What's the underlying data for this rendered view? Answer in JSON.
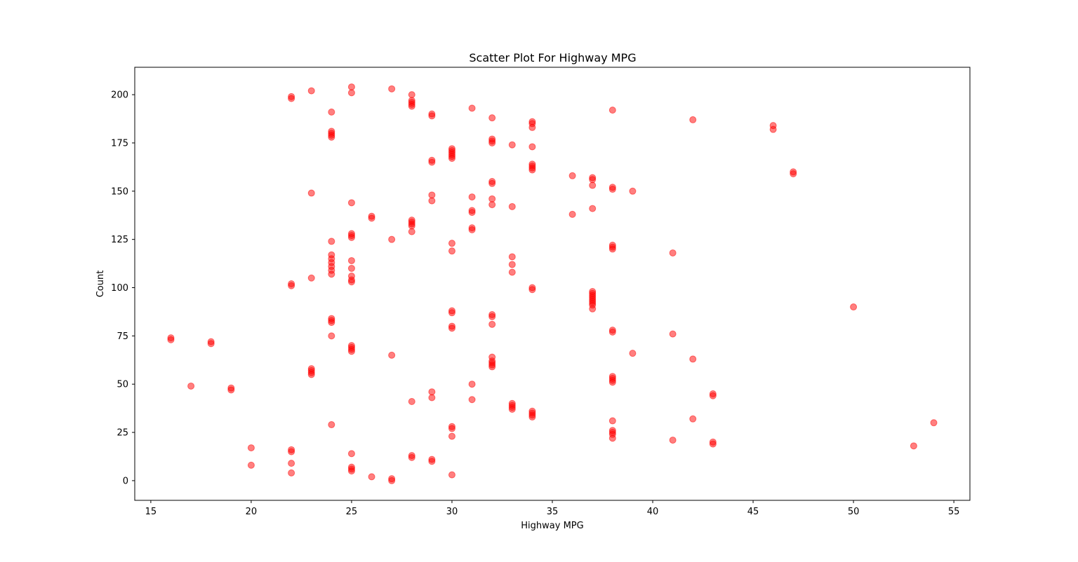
{
  "chart_data": {
    "type": "scatter",
    "title": "Scatter Plot For Highway MPG",
    "xlabel": "Highway MPG",
    "ylabel": "Count",
    "xlim": [
      14.2,
      55.8
    ],
    "ylim": [
      -10.2,
      214.2
    ],
    "xticks": [
      15,
      20,
      25,
      30,
      35,
      40,
      45,
      50,
      55
    ],
    "yticks": [
      0,
      25,
      50,
      75,
      100,
      125,
      150,
      175,
      200
    ],
    "grid": false,
    "legend": "none",
    "marker_color": "#ff0000",
    "marker_opacity": 0.5,
    "points": [
      [
        16,
        74
      ],
      [
        16,
        73
      ],
      [
        17,
        49
      ],
      [
        18,
        72
      ],
      [
        18,
        71
      ],
      [
        19,
        48
      ],
      [
        19,
        47
      ],
      [
        20,
        17
      ],
      [
        20,
        8
      ],
      [
        22,
        199
      ],
      [
        22,
        198
      ],
      [
        22,
        102
      ],
      [
        22,
        101
      ],
      [
        22,
        16
      ],
      [
        22,
        15
      ],
      [
        22,
        9
      ],
      [
        22,
        4
      ],
      [
        23,
        202
      ],
      [
        23,
        149
      ],
      [
        23,
        105
      ],
      [
        23,
        58
      ],
      [
        23,
        57
      ],
      [
        23,
        56
      ],
      [
        23,
        55
      ],
      [
        24,
        191
      ],
      [
        24,
        181
      ],
      [
        24,
        180
      ],
      [
        24,
        179
      ],
      [
        24,
        178
      ],
      [
        24,
        124
      ],
      [
        24,
        117
      ],
      [
        24,
        115
      ],
      [
        24,
        113
      ],
      [
        24,
        111
      ],
      [
        24,
        109
      ],
      [
        24,
        107
      ],
      [
        24,
        84
      ],
      [
        24,
        83
      ],
      [
        24,
        82
      ],
      [
        24,
        75
      ],
      [
        24,
        29
      ],
      [
        25,
        204
      ],
      [
        25,
        201
      ],
      [
        25,
        144
      ],
      [
        25,
        128
      ],
      [
        25,
        127
      ],
      [
        25,
        126
      ],
      [
        25,
        114
      ],
      [
        25,
        110
      ],
      [
        25,
        106
      ],
      [
        25,
        104
      ],
      [
        25,
        103
      ],
      [
        25,
        70
      ],
      [
        25,
        69
      ],
      [
        25,
        68
      ],
      [
        25,
        67
      ],
      [
        25,
        14
      ],
      [
        25,
        7
      ],
      [
        25,
        6
      ],
      [
        25,
        5
      ],
      [
        26,
        137
      ],
      [
        26,
        136
      ],
      [
        26,
        2
      ],
      [
        27,
        203
      ],
      [
        27,
        125
      ],
      [
        27,
        65
      ],
      [
        27,
        1
      ],
      [
        27,
        0
      ],
      [
        28,
        200
      ],
      [
        28,
        197
      ],
      [
        28,
        196
      ],
      [
        28,
        195
      ],
      [
        28,
        194
      ],
      [
        28,
        135
      ],
      [
        28,
        134
      ],
      [
        28,
        133
      ],
      [
        28,
        132
      ],
      [
        28,
        129
      ],
      [
        28,
        41
      ],
      [
        28,
        13
      ],
      [
        28,
        12
      ],
      [
        29,
        190
      ],
      [
        29,
        189
      ],
      [
        29,
        166
      ],
      [
        29,
        165
      ],
      [
        29,
        148
      ],
      [
        29,
        145
      ],
      [
        29,
        46
      ],
      [
        29,
        43
      ],
      [
        29,
        11
      ],
      [
        29,
        10
      ],
      [
        30,
        172
      ],
      [
        30,
        171
      ],
      [
        30,
        170
      ],
      [
        30,
        169
      ],
      [
        30,
        168
      ],
      [
        30,
        167
      ],
      [
        30,
        123
      ],
      [
        30,
        119
      ],
      [
        30,
        88
      ],
      [
        30,
        87
      ],
      [
        30,
        80
      ],
      [
        30,
        79
      ],
      [
        30,
        28
      ],
      [
        30,
        27
      ],
      [
        30,
        23
      ],
      [
        30,
        3
      ],
      [
        31,
        193
      ],
      [
        31,
        147
      ],
      [
        31,
        140
      ],
      [
        31,
        139
      ],
      [
        31,
        131
      ],
      [
        31,
        130
      ],
      [
        31,
        50
      ],
      [
        31,
        42
      ],
      [
        32,
        188
      ],
      [
        32,
        177
      ],
      [
        32,
        176
      ],
      [
        32,
        175
      ],
      [
        32,
        155
      ],
      [
        32,
        154
      ],
      [
        32,
        146
      ],
      [
        32,
        143
      ],
      [
        32,
        86
      ],
      [
        32,
        85
      ],
      [
        32,
        81
      ],
      [
        32,
        64
      ],
      [
        32,
        62
      ],
      [
        32,
        61
      ],
      [
        32,
        60
      ],
      [
        32,
        59
      ],
      [
        33,
        174
      ],
      [
        33,
        142
      ],
      [
        33,
        116
      ],
      [
        33,
        112
      ],
      [
        33,
        108
      ],
      [
        33,
        40
      ],
      [
        33,
        39
      ],
      [
        33,
        38
      ],
      [
        33,
        37
      ],
      [
        34,
        186
      ],
      [
        34,
        185
      ],
      [
        34,
        183
      ],
      [
        34,
        173
      ],
      [
        34,
        164
      ],
      [
        34,
        163
      ],
      [
        34,
        162
      ],
      [
        34,
        161
      ],
      [
        34,
        100
      ],
      [
        34,
        99
      ],
      [
        34,
        36
      ],
      [
        34,
        35
      ],
      [
        34,
        34
      ],
      [
        34,
        33
      ],
      [
        36,
        158
      ],
      [
        36,
        138
      ],
      [
        37,
        157
      ],
      [
        37,
        156
      ],
      [
        37,
        153
      ],
      [
        37,
        141
      ],
      [
        37,
        98
      ],
      [
        37,
        97
      ],
      [
        37,
        96
      ],
      [
        37,
        95
      ],
      [
        37,
        94
      ],
      [
        37,
        93
      ],
      [
        37,
        92
      ],
      [
        37,
        91
      ],
      [
        37,
        89
      ],
      [
        38,
        192
      ],
      [
        38,
        152
      ],
      [
        38,
        151
      ],
      [
        38,
        122
      ],
      [
        38,
        121
      ],
      [
        38,
        120
      ],
      [
        38,
        78
      ],
      [
        38,
        77
      ],
      [
        38,
        54
      ],
      [
        38,
        53
      ],
      [
        38,
        52
      ],
      [
        38,
        51
      ],
      [
        38,
        31
      ],
      [
        38,
        26
      ],
      [
        38,
        25
      ],
      [
        38,
        24
      ],
      [
        38,
        22
      ],
      [
        39,
        150
      ],
      [
        39,
        66
      ],
      [
        41,
        118
      ],
      [
        41,
        76
      ],
      [
        41,
        21
      ],
      [
        42,
        187
      ],
      [
        42,
        63
      ],
      [
        42,
        32
      ],
      [
        43,
        45
      ],
      [
        43,
        44
      ],
      [
        43,
        20
      ],
      [
        43,
        19
      ],
      [
        46,
        184
      ],
      [
        46,
        182
      ],
      [
        47,
        160
      ],
      [
        47,
        159
      ],
      [
        50,
        90
      ],
      [
        53,
        18
      ],
      [
        54,
        30
      ]
    ]
  }
}
